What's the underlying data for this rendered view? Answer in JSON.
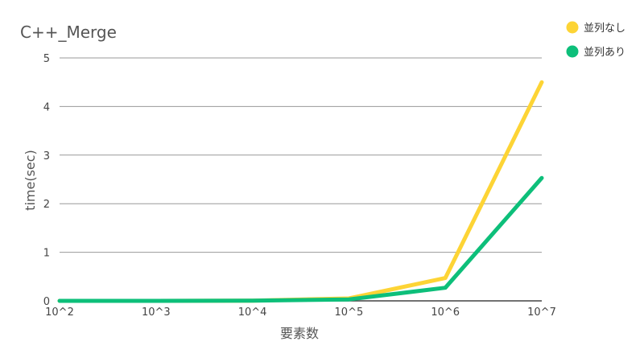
{
  "chart_data": {
    "type": "line",
    "title": "C++_Merge",
    "xlabel": "要素数",
    "ylabel": "time(sec)",
    "categories": [
      "10^2",
      "10^3",
      "10^4",
      "10^5",
      "10^6",
      "10^7"
    ],
    "ylim": [
      0,
      5
    ],
    "yticks": [
      0,
      1,
      2,
      3,
      4,
      5
    ],
    "grid": true,
    "legend_position": "top-right",
    "series": [
      {
        "name": "並列なし",
        "color": "#FDD435",
        "values": [
          0.0,
          0.0,
          0.005,
          0.05,
          0.47,
          4.5
        ]
      },
      {
        "name": "並列あり",
        "color": "#0DBF7A",
        "values": [
          0.0,
          0.0,
          0.004,
          0.03,
          0.27,
          2.53
        ]
      }
    ]
  }
}
